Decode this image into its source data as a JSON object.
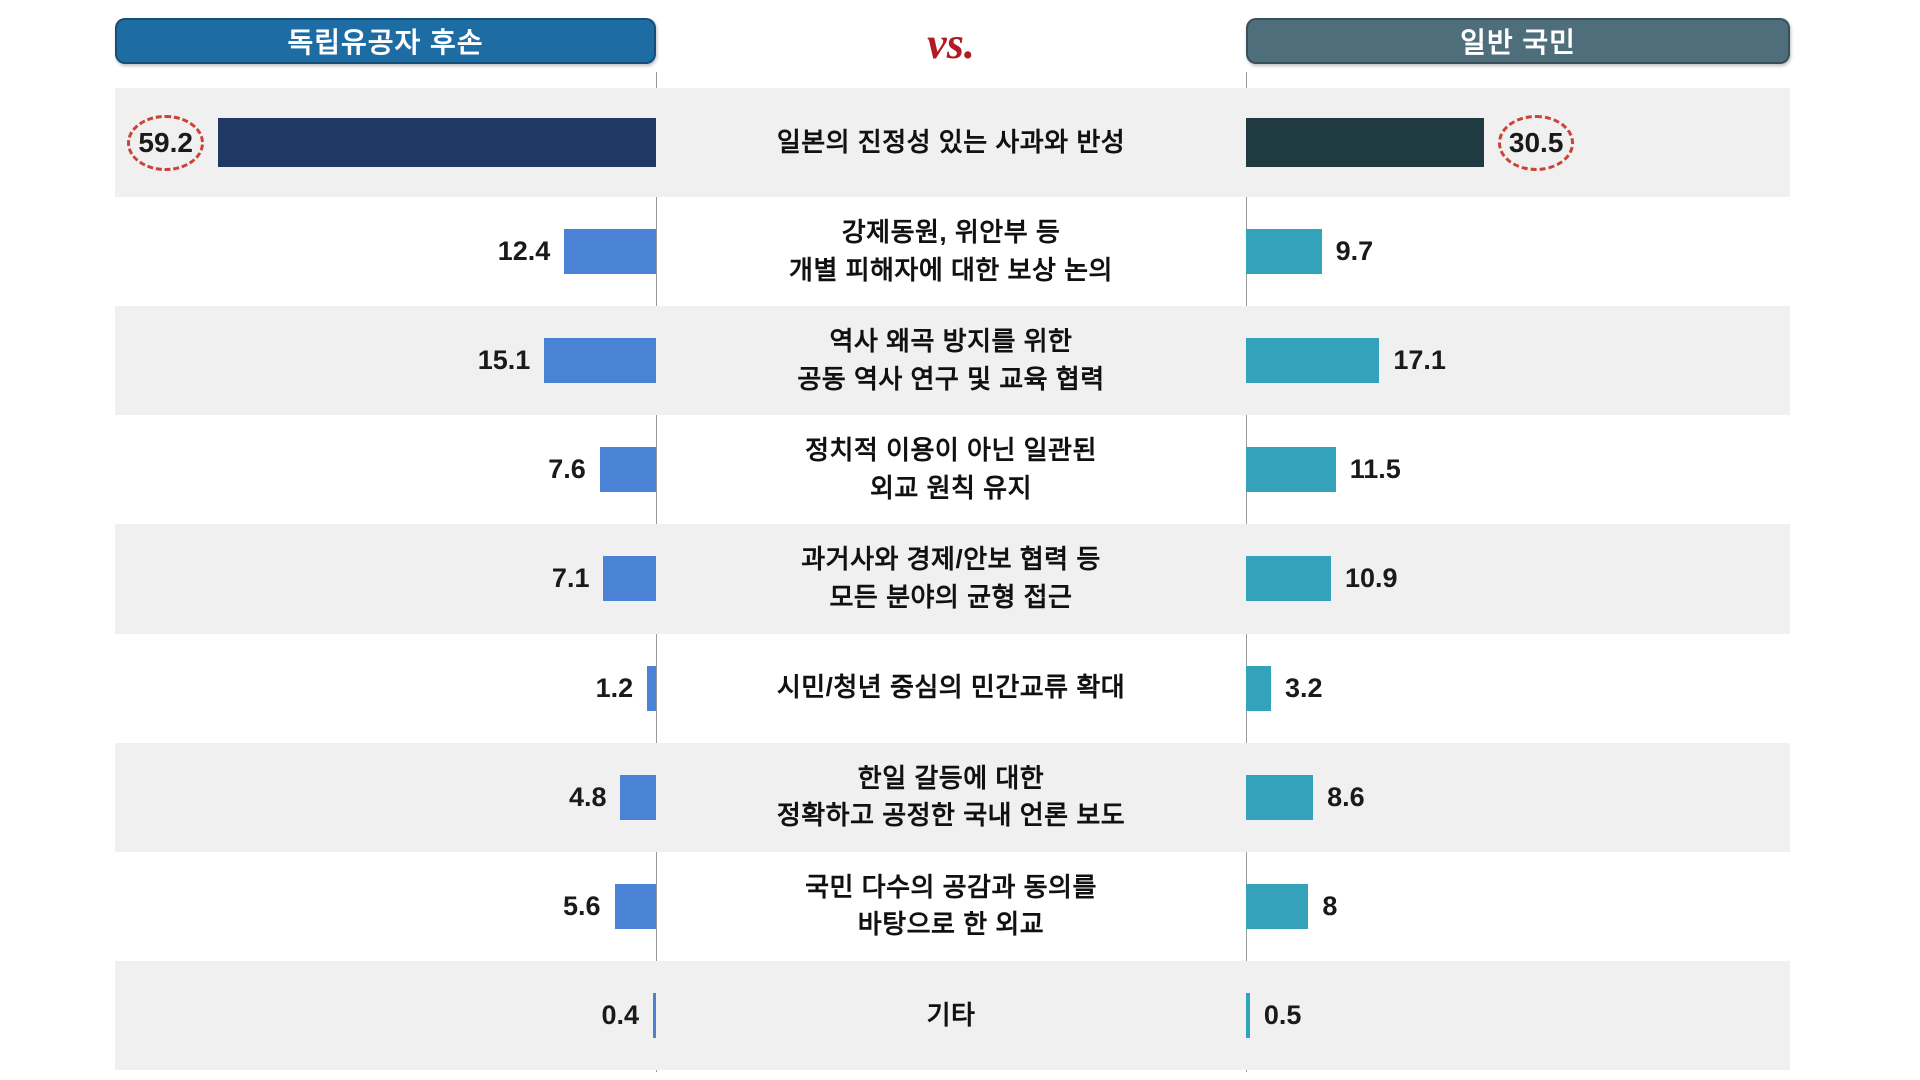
{
  "header": {
    "left_group": "독립유공자 후손",
    "versus": "vs.",
    "right_group": "일반 국민"
  },
  "colors": {
    "left_header_bg": "#1E6CA4",
    "right_header_bg": "#4F6E7C",
    "left_bar": "#4A82D6",
    "right_bar": "#35A2BC",
    "left_bar_highlight": "#1F3864",
    "right_bar_highlight": "#1F3A40",
    "versus_red": "#B21A24",
    "row_stripe": "#F0F0F0",
    "highlight_circle": "#CB4335"
  },
  "chart_data": {
    "type": "bar",
    "orientation": "horizontal-mirrored",
    "title": "",
    "unit": "%",
    "categories": [
      "일본의 진정성 있는 사과와 반성",
      "강제동원, 위안부 등\n개별 피해자에 대한 보상 논의",
      "역사 왜곡 방지를 위한\n공동 역사 연구 및 교육 협력",
      "정치적 이용이 아닌 일관된\n외교 원칙 유지",
      "과거사와 경제/안보 협력 등\n모든 분야의 균형 접근",
      "시민/청년 중심의 민간교류 확대",
      "한일 갈등에 대한\n정확하고 공정한 국내 언론 보도",
      "국민 다수의 공감과 동의를\n바탕으로 한 외교",
      "기타"
    ],
    "series": [
      {
        "name": "독립유공자 후손",
        "side": "left",
        "values": [
          59.2,
          12.4,
          15.1,
          7.6,
          7.1,
          1.2,
          4.8,
          5.6,
          0.4
        ]
      },
      {
        "name": "일반 국민",
        "side": "right",
        "values": [
          30.5,
          9.7,
          17.1,
          11.5,
          10.9,
          3.2,
          8.6,
          8,
          0.5
        ]
      }
    ],
    "highlighted_category_index": 0,
    "xlim_left": [
      0,
      65
    ],
    "xlim_right": [
      0,
      65
    ],
    "grid": false,
    "legend_position": "top-headers",
    "row_striping": "alternating starting gray"
  }
}
